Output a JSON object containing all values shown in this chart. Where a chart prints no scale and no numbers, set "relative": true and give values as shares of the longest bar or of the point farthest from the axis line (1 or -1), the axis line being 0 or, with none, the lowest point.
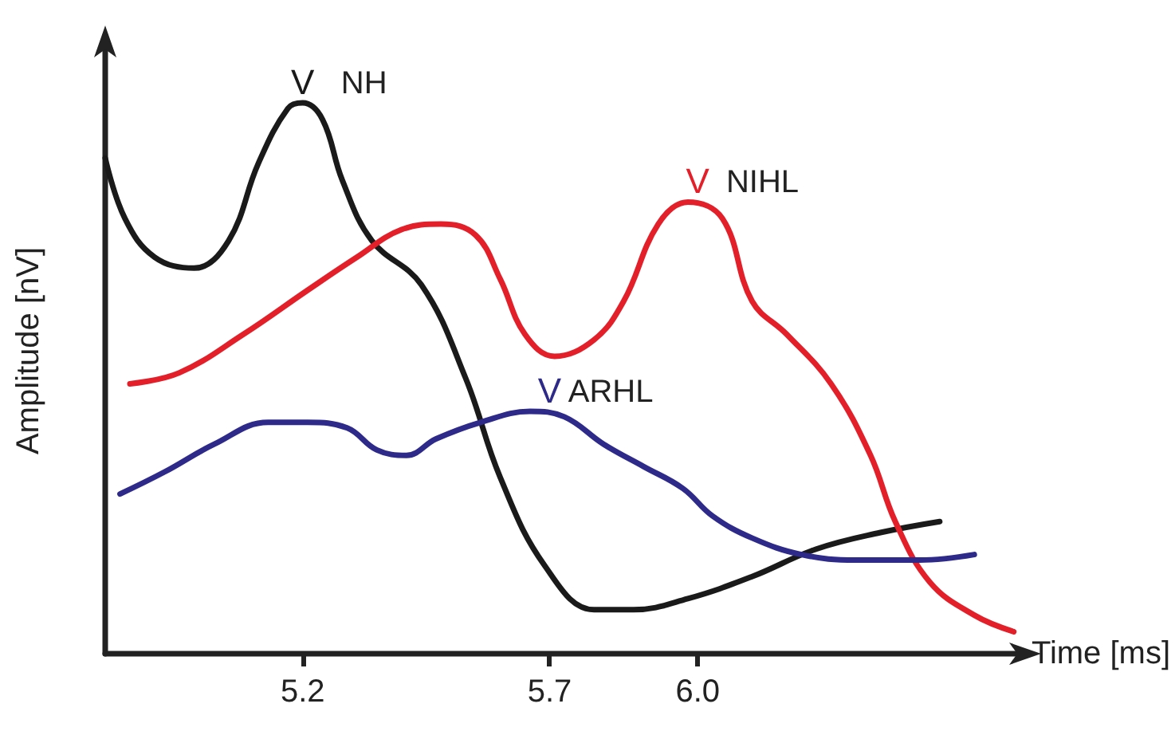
{
  "chart_data": {
    "type": "line",
    "relative": true,
    "xlabel": "Time [ms]",
    "ylabel": "Amplitude [nV]",
    "xlim": [
      4.8,
      6.65
    ],
    "xticks": [
      5.2,
      5.7,
      {
        "value": 6,
        "label": "6.0"
      }
    ],
    "grid": false,
    "legend": false,
    "marker": "none",
    "line_style": "solid",
    "annotations": [
      {
        "text": "V",
        "x": 5.2,
        "y": 1.0
      },
      {
        "text": "V",
        "x": 6.0,
        "y": 0.82
      },
      {
        "text": "V",
        "x": 5.7,
        "y": 0.44
      }
    ],
    "series": [
      {
        "name": "NH",
        "color": "#1a1a1a",
        "x": [
          4.8,
          4.84,
          4.9,
          4.98,
          5.05,
          5.11,
          5.17,
          5.2,
          5.24,
          5.28,
          5.34,
          5.44,
          5.53,
          5.6,
          5.69,
          5.79,
          5.87,
          5.98,
          6.11,
          6.24,
          6.37,
          6.49
        ],
        "values": [
          0.9,
          0.79,
          0.72,
          0.7,
          0.75,
          0.89,
          0.99,
          1.0,
          0.97,
          0.86,
          0.75,
          0.67,
          0.5,
          0.32,
          0.16,
          0.08,
          0.08,
          0.1,
          0.14,
          0.19,
          0.22,
          0.24
        ]
      },
      {
        "name": "NIHL",
        "color": "#e3202a",
        "x": [
          4.85,
          4.95,
          5.08,
          5.21,
          5.31,
          5.4,
          5.48,
          5.55,
          5.6,
          5.65,
          5.71,
          5.79,
          5.85,
          5.92,
          5.98,
          6.05,
          6.11,
          6.18,
          6.27,
          6.35,
          6.4,
          6.47,
          6.56,
          6.64
        ],
        "values": [
          0.49,
          0.51,
          0.58,
          0.66,
          0.72,
          0.77,
          0.78,
          0.76,
          0.68,
          0.58,
          0.54,
          0.57,
          0.64,
          0.78,
          0.82,
          0.79,
          0.64,
          0.58,
          0.49,
          0.36,
          0.24,
          0.13,
          0.07,
          0.04
        ]
      },
      {
        "name": "ARHL",
        "color": "#2e2a8a",
        "x": [
          4.83,
          4.92,
          5.02,
          5.13,
          5.21,
          5.29,
          5.35,
          5.41,
          5.47,
          5.56,
          5.66,
          5.73,
          5.81,
          5.89,
          5.97,
          6.03,
          6.11,
          6.21,
          6.32,
          6.45,
          6.56
        ],
        "values": [
          0.29,
          0.33,
          0.38,
          0.42,
          0.42,
          0.41,
          0.37,
          0.36,
          0.39,
          0.42,
          0.44,
          0.43,
          0.38,
          0.34,
          0.3,
          0.25,
          0.21,
          0.18,
          0.17,
          0.17,
          0.18
        ]
      }
    ]
  }
}
